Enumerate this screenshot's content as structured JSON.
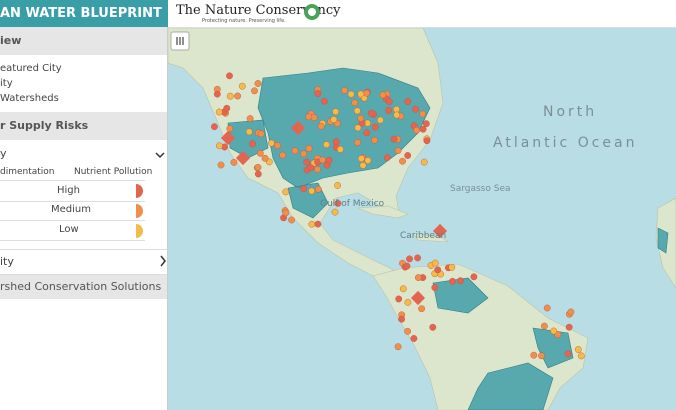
{
  "header": {
    "title": "AN WATER BLUEPRINT",
    "logo": "The Nature Conservancy",
    "tagline": "Protecting nature. Preserving life."
  },
  "sidebar": {
    "overview": {
      "heading": "iew",
      "items": [
        "eatured City",
        "ity",
        "Watersheds"
      ]
    },
    "risks": {
      "heading": "r Supply Risks",
      "selector": "y",
      "columns": [
        "dimentation",
        "Nutrient Pollution"
      ],
      "levels": [
        "High",
        "Medium",
        "Low"
      ]
    },
    "city": "ity",
    "solutions": "rshed Conservation Solutions"
  },
  "map": {
    "labels": {
      "north": "North",
      "ocean": "Atlantic Ocean",
      "sargasso": "Sargasso Sea",
      "gulf": "Gulf of Mexico",
      "caribbean": "Caribbean"
    }
  }
}
